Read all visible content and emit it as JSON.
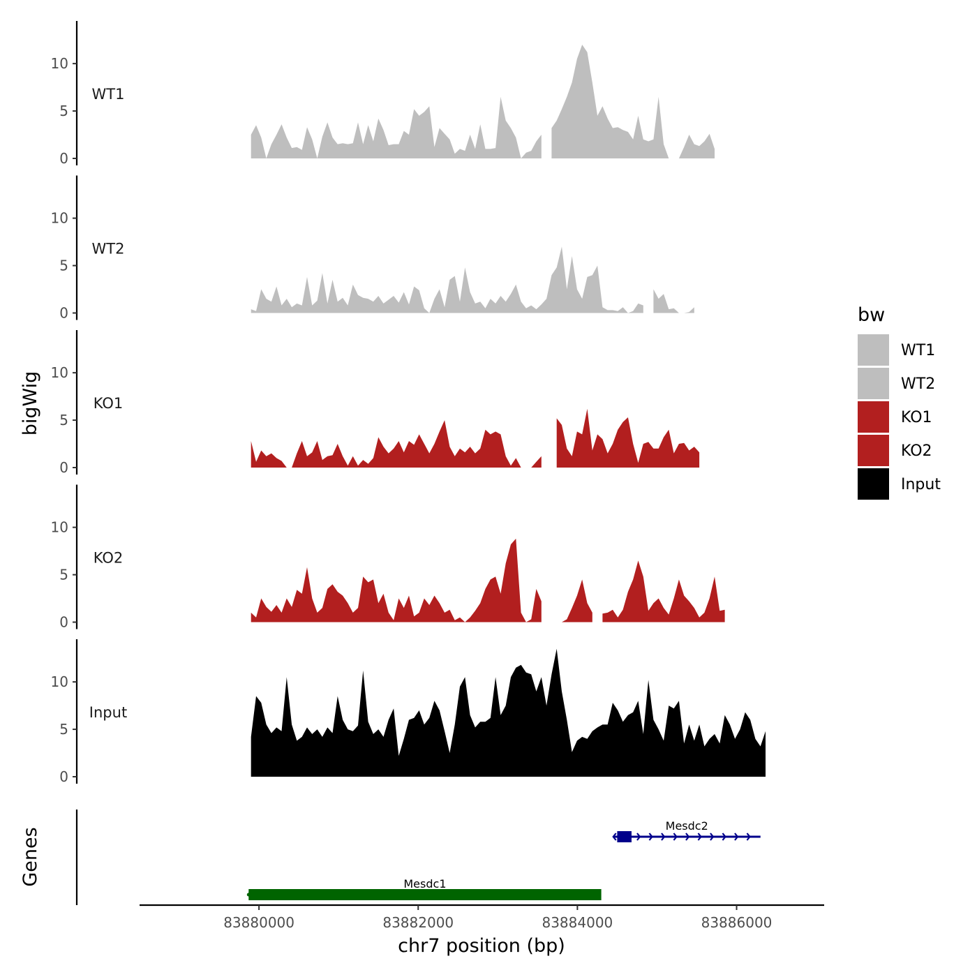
{
  "chart_data": {
    "type": "area",
    "title": "",
    "xlabel": "chr7 position (bp)",
    "ylabel": "bigWig",
    "genes_label": "Genes",
    "xlim": [
      83878500,
      83887100
    ],
    "x_ticks": [
      83880000,
      83882000,
      83884000,
      83886000
    ],
    "x_tick_labels": [
      "83880000",
      "83882000",
      "83884000",
      "83886000"
    ],
    "ylim": [
      0,
      14.5
    ],
    "y_ticks": [
      0,
      5,
      10
    ],
    "y_tick_labels": [
      "0",
      "5",
      "10"
    ],
    "legend": {
      "title": "bw",
      "position": "right",
      "entries": [
        {
          "label": "WT1",
          "color": "#bebebe"
        },
        {
          "label": "WT2",
          "color": "#bebebe"
        },
        {
          "label": "KO1",
          "color": "#b21f1f"
        },
        {
          "label": "KO2",
          "color": "#b21f1f"
        },
        {
          "label": "Input",
          "color": "#000000"
        }
      ]
    },
    "tracks": [
      {
        "name": "WT1",
        "color": "#bebebe",
        "start": 83879900,
        "step": 64,
        "values": [
          2.5,
          3.5,
          2.2,
          0,
          1.5,
          2.5,
          3.6,
          2.2,
          1.1,
          1.2,
          0.9,
          3.3,
          2.0,
          0,
          2.3,
          3.8,
          2.2,
          1.5,
          1.6,
          1.5,
          1.6,
          3.8,
          1.5,
          3.5,
          1.8,
          4.2,
          3.0,
          1.4,
          1.5,
          1.5,
          2.9,
          2.5,
          5.2,
          4.5,
          4.9,
          5.5,
          1.2,
          3.2,
          2.6,
          2.0,
          0.5,
          1.0,
          0.8,
          2.5,
          1.0,
          3.6,
          1.0,
          1.0,
          1.1,
          6.5,
          4.0,
          3.2,
          2.2,
          0,
          0.6,
          0.8,
          1.8,
          2.5,
          2.8,
          3.2,
          4.0,
          5.2,
          6.5,
          8.0,
          10.5,
          12.0,
          11.2,
          8.0,
          4.5,
          5.5,
          4.2,
          3.2,
          3.3,
          3.0,
          2.8,
          2.0,
          4.5,
          2.0,
          1.8,
          2.0,
          6.5,
          1.5,
          0,
          0,
          0,
          1.2,
          2.5,
          1.5,
          1.3,
          1.8,
          2.6,
          1.0
        ],
        "gaps": [
          [
            83883580,
            83883660
          ],
          [
            83886300,
            83886500
          ]
        ]
      },
      {
        "name": "WT2",
        "color": "#bebebe",
        "start": 83879900,
        "step": 64,
        "values": [
          0.4,
          0.2,
          2.5,
          1.5,
          1.2,
          2.8,
          0.8,
          1.5,
          0.6,
          1.0,
          0.8,
          3.8,
          0.8,
          1.3,
          4.2,
          1.0,
          3.5,
          1.2,
          1.6,
          0.8,
          3.0,
          1.9,
          1.6,
          1.5,
          1.2,
          1.8,
          1.0,
          1.4,
          1.8,
          1.1,
          2.2,
          0.9,
          2.8,
          2.4,
          0.5,
          0,
          1.5,
          2.5,
          0.6,
          3.5,
          3.9,
          1.2,
          4.8,
          2.2,
          1.0,
          1.2,
          0.5,
          1.5,
          1.0,
          1.8,
          1.2,
          2.0,
          3.0,
          1.2,
          0.5,
          0.8,
          0.4,
          0.9,
          1.5,
          4.0,
          4.8,
          7.0,
          2.5,
          6.0,
          2.5,
          1.5,
          3.8,
          4.0,
          5.0,
          0.6,
          0.3,
          0.3,
          0.2,
          0.6,
          0,
          0.2,
          1.0,
          0.8,
          0.2,
          2.5,
          1.5,
          2.0,
          0.4,
          0.5,
          0,
          0,
          0.1,
          0.6
        ],
        "gaps": [
          [
            83884860,
            83884900
          ],
          [
            83886050,
            83886180
          ]
        ]
      },
      {
        "name": "KO1",
        "color": "#b21f1f",
        "start": 83879900,
        "step": 64,
        "values": [
          2.8,
          0.6,
          1.8,
          1.2,
          1.5,
          1.0,
          0.7,
          0,
          0,
          1.5,
          2.8,
          1.2,
          1.6,
          2.8,
          0.8,
          1.2,
          1.3,
          2.5,
          1.2,
          0.2,
          1.2,
          0.2,
          0.8,
          0.4,
          1.0,
          3.2,
          2.2,
          1.5,
          2.0,
          2.8,
          1.6,
          2.8,
          2.4,
          3.5,
          2.5,
          1.5,
          2.5,
          3.8,
          5.0,
          2.2,
          1.2,
          2.0,
          1.6,
          2.2,
          1.5,
          2.0,
          4.0,
          3.5,
          3.8,
          3.5,
          1.2,
          0.2,
          1.0,
          0,
          0,
          0,
          0.6,
          1.2,
          1.6,
          2.5,
          5.2,
          4.5,
          2.0,
          1.2,
          3.8,
          3.5,
          6.2,
          1.8,
          3.5,
          3.0,
          1.5,
          2.5,
          4.0,
          4.8,
          5.3,
          2.5,
          0.5,
          2.5,
          2.7,
          2.0,
          2.0,
          3.2,
          4.0,
          1.5,
          2.5,
          2.6,
          1.8,
          2.2,
          1.6
        ],
        "gaps": [
          [
            83883550,
            83883720
          ]
        ]
      },
      {
        "name": "KO2",
        "color": "#b21f1f",
        "start": 83879900,
        "step": 64,
        "values": [
          1.0,
          0.5,
          2.5,
          1.6,
          1.1,
          1.8,
          1.0,
          2.5,
          1.6,
          3.4,
          3.0,
          5.8,
          2.5,
          1.0,
          1.5,
          3.5,
          4.0,
          3.2,
          2.8,
          2.0,
          1.0,
          1.5,
          4.8,
          4.2,
          4.5,
          2.0,
          3.0,
          1.0,
          0.2,
          2.5,
          1.5,
          2.8,
          0.6,
          1.0,
          2.5,
          1.8,
          2.8,
          2.0,
          1.0,
          1.3,
          0.2,
          0.5,
          0,
          0.5,
          1.2,
          2.0,
          3.5,
          4.5,
          4.8,
          3.0,
          6.2,
          8.2,
          8.8,
          1.0,
          0,
          0.3,
          3.5,
          2.2,
          1.5,
          2.8,
          0,
          0,
          0.3,
          1.5,
          2.8,
          4.5,
          2.0,
          1.0,
          1.0,
          0.9,
          1.0,
          1.3,
          0.5,
          1.3,
          3.2,
          4.5,
          6.5,
          4.8,
          1.2,
          2.0,
          2.5,
          1.5,
          0.8,
          2.5,
          4.5,
          2.8,
          2.2,
          1.5,
          0.5,
          1.0,
          2.5,
          4.8,
          1.2,
          1.3
        ],
        "gaps": [
          [
            83883550,
            83883710
          ],
          [
            83884200,
            83884300
          ]
        ]
      },
      {
        "name": "Input",
        "color": "#000000",
        "start": 83879900,
        "step": 64,
        "values": [
          4.2,
          8.5,
          7.8,
          5.5,
          4.6,
          5.2,
          4.8,
          10.5,
          5.5,
          3.8,
          4.2,
          5.2,
          4.5,
          5.0,
          4.2,
          5.2,
          4.6,
          8.5,
          6.0,
          5.0,
          4.8,
          5.4,
          11.2,
          5.8,
          4.5,
          5.0,
          4.2,
          6.0,
          7.2,
          2.2,
          4.0,
          6.0,
          6.2,
          7.0,
          5.5,
          6.2,
          8.0,
          7.0,
          4.8,
          2.5,
          5.5,
          9.5,
          10.5,
          6.5,
          5.2,
          5.8,
          5.8,
          6.2,
          10.5,
          6.5,
          7.5,
          10.5,
          11.5,
          11.8,
          11.0,
          10.8,
          9.0,
          10.5,
          7.5,
          10.8,
          13.5,
          9.0,
          6.0,
          2.6,
          3.8,
          4.2,
          4.0,
          4.8,
          5.2,
          5.5,
          5.5,
          7.8,
          7.0,
          5.8,
          6.5,
          6.8,
          8.0,
          4.5,
          10.2,
          6.0,
          5.0,
          3.8,
          7.5,
          7.2,
          8.0,
          3.5,
          5.5,
          3.8,
          5.5,
          3.2,
          4.0,
          4.5,
          3.5,
          6.5,
          5.5,
          4.0,
          5.0,
          6.8,
          6.0,
          4.0,
          3.2,
          4.8
        ],
        "gaps": []
      }
    ],
    "genes": [
      {
        "name": "Mesdc1",
        "start": 83879870,
        "end": 83884300,
        "strand": "-",
        "color": "#006400",
        "cds": [],
        "row": 2
      },
      {
        "name": "Mesdc2",
        "start": 83884450,
        "end": 83886300,
        "strand": "+",
        "color": "#00008b",
        "cds": [
          [
            83884500,
            83884680
          ]
        ],
        "row": 1
      }
    ]
  }
}
